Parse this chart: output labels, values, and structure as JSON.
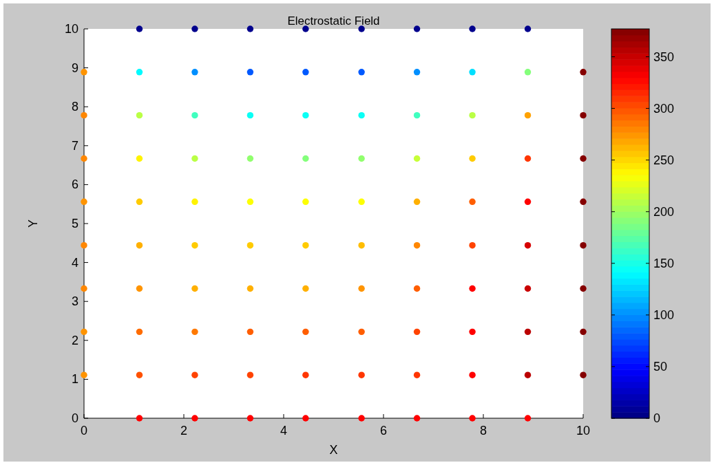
{
  "chart_data": {
    "type": "scatter",
    "title": "Electrostatic Field",
    "xlabel": "X",
    "ylabel": "Y",
    "xlim": [
      0,
      10
    ],
    "ylim": [
      0,
      10
    ],
    "xticks": [
      0,
      2,
      4,
      6,
      8,
      10
    ],
    "yticks": [
      0,
      1,
      2,
      3,
      4,
      5,
      6,
      7,
      8,
      9,
      10
    ],
    "clim": [
      0,
      377
    ],
    "cticks": [
      0,
      50,
      100,
      150,
      200,
      250,
      300,
      350
    ],
    "marker": "circle",
    "series": [
      {
        "x": [
          1.11,
          2.22,
          3.33,
          4.44,
          5.56,
          6.67,
          7.78,
          8.89,
          0,
          1.11,
          2.22,
          3.33,
          4.44,
          5.56,
          6.67,
          7.78,
          8.89,
          10,
          0,
          1.11,
          2.22,
          3.33,
          4.44,
          5.56,
          6.67,
          7.78,
          8.89,
          10,
          0,
          1.11,
          2.22,
          3.33,
          4.44,
          5.56,
          6.67,
          7.78,
          8.89,
          10,
          0,
          1.11,
          2.22,
          3.33,
          4.44,
          5.56,
          6.67,
          7.78,
          8.89,
          10,
          0,
          1.11,
          2.22,
          3.33,
          4.44,
          5.56,
          6.67,
          7.78,
          8.89,
          10,
          0,
          1.11,
          2.22,
          3.33,
          4.44,
          5.56,
          6.67,
          7.78,
          8.89,
          10,
          0,
          1.11,
          2.22,
          3.33,
          4.44,
          5.56,
          6.67,
          7.78,
          8.89,
          10,
          0,
          1.11,
          2.22,
          3.33,
          4.44,
          5.56,
          6.67,
          7.78,
          8.89,
          10,
          1.11,
          2.22,
          3.33,
          4.44,
          5.56,
          6.67,
          7.78,
          8.89
        ],
        "values": [
          10,
          10,
          10,
          10,
          10,
          10,
          10,
          10,
          8.89,
          8.89,
          8.89,
          8.89,
          8.89,
          8.89,
          8.89,
          8.89,
          8.89,
          8.89,
          7.78,
          7.78,
          7.78,
          7.78,
          7.78,
          7.78,
          7.78,
          7.78,
          7.78,
          7.78,
          6.67,
          6.67,
          6.67,
          6.67,
          6.67,
          6.67,
          6.67,
          6.67,
          6.67,
          6.67,
          5.56,
          5.56,
          5.56,
          5.56,
          5.56,
          5.56,
          5.56,
          5.56,
          5.56,
          5.56,
          4.44,
          4.44,
          4.44,
          4.44,
          4.44,
          4.44,
          4.44,
          4.44,
          4.44,
          4.44,
          3.33,
          3.33,
          3.33,
          3.33,
          3.33,
          3.33,
          3.33,
          3.33,
          3.33,
          3.33,
          2.22,
          2.22,
          2.22,
          2.22,
          2.22,
          2.22,
          2.22,
          2.22,
          2.22,
          2.22,
          1.11,
          1.11,
          1.11,
          1.11,
          1.11,
          1.11,
          1.11,
          1.11,
          1.11,
          1.11,
          0,
          0,
          0,
          0,
          0,
          0,
          0,
          0
        ],
        "cvalues": [
          5,
          5,
          5,
          5,
          5,
          5,
          5,
          5,
          275,
          140,
          100,
          80,
          80,
          80,
          100,
          130,
          190,
          375,
          280,
          210,
          165,
          145,
          145,
          145,
          165,
          210,
          270,
          375,
          280,
          240,
          210,
          195,
          190,
          195,
          215,
          255,
          310,
          375,
          275,
          255,
          240,
          235,
          235,
          235,
          265,
          295,
          330,
          375,
          280,
          265,
          255,
          255,
          255,
          260,
          280,
          305,
          345,
          375,
          280,
          275,
          265,
          265,
          265,
          275,
          295,
          330,
          350,
          375,
          275,
          290,
          285,
          295,
          295,
          295,
          305,
          330,
          355,
          375,
          275,
          300,
          305,
          305,
          310,
          310,
          310,
          330,
          355,
          375,
          330,
          330,
          330,
          330,
          330,
          330,
          330,
          330
        ]
      }
    ]
  }
}
